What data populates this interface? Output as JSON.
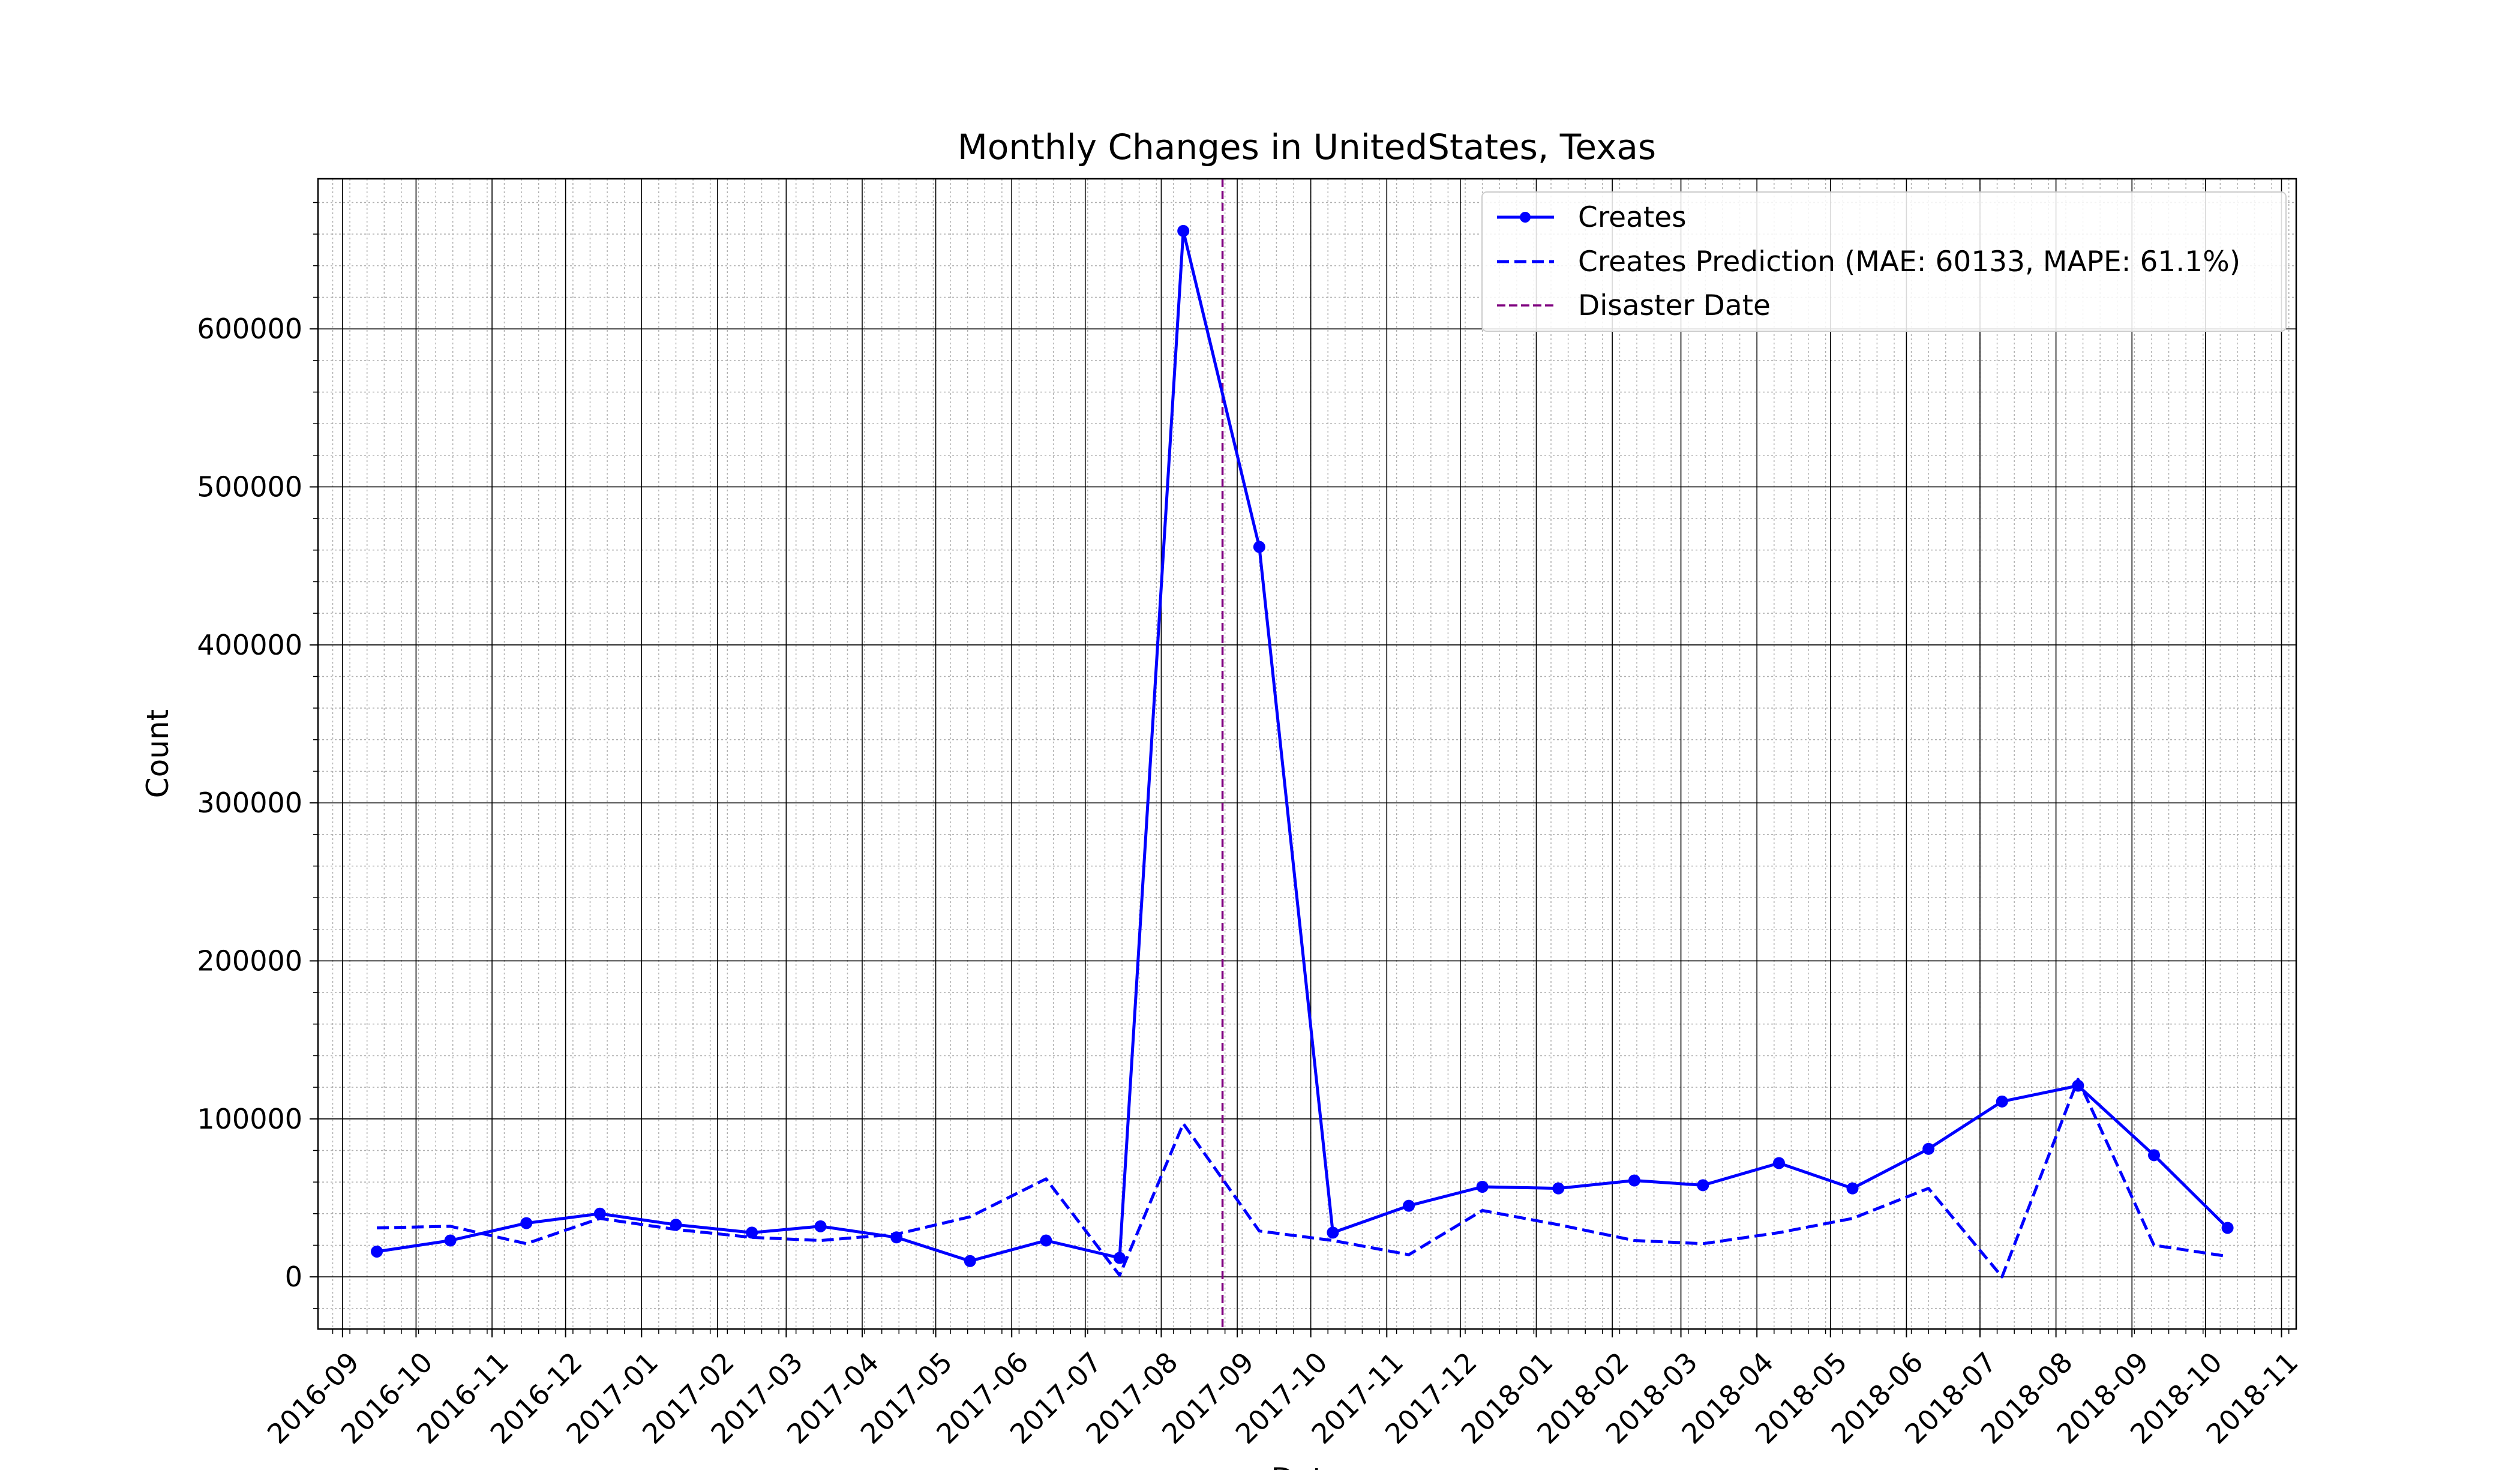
{
  "chart_data": {
    "type": "line",
    "title": "Monthly Changes in UnitedStates, Texas",
    "xlabel": "Date",
    "ylabel": "Count",
    "x_tick_labels": [
      "2016-09",
      "2016-10",
      "2016-11",
      "2016-12",
      "2017-01",
      "2017-02",
      "2017-03",
      "2017-04",
      "2017-05",
      "2017-06",
      "2017-07",
      "2017-08",
      "2017-09",
      "2017-10",
      "2017-11",
      "2017-12",
      "2018-01",
      "2018-02",
      "2018-03",
      "2018-04",
      "2018-05",
      "2018-06",
      "2018-07",
      "2018-08",
      "2018-09",
      "2018-10",
      "2018-11"
    ],
    "y_ticks": [
      0,
      100000,
      200000,
      300000,
      400000,
      500000,
      600000
    ],
    "ylim": [
      -33000,
      695000
    ],
    "xlim": [
      "2016-08-22",
      "2018-11-07"
    ],
    "grid": true,
    "legend_position": "top-right",
    "colors": {
      "actual": "#0000ff",
      "prediction": "#0000ff",
      "disaster": "#800080"
    },
    "disaster_date": "2017-08-26",
    "x": [
      "2016-09-15",
      "2016-10-15",
      "2016-11-15",
      "2016-12-15",
      "2017-01-15",
      "2017-02-15",
      "2017-03-15",
      "2017-04-15",
      "2017-05-15",
      "2017-06-15",
      "2017-07-15",
      "2017-08-10",
      "2017-09-10",
      "2017-10-10",
      "2017-11-10",
      "2017-12-10",
      "2018-01-10",
      "2018-02-10",
      "2018-03-10",
      "2018-04-10",
      "2018-05-10",
      "2018-06-10",
      "2018-07-10",
      "2018-08-10",
      "2018-09-10",
      "2018-10-10"
    ],
    "series": [
      {
        "name": "Creates",
        "style": "solid-marker",
        "values": [
          16000,
          23000,
          34000,
          40000,
          33000,
          28000,
          32000,
          25000,
          10000,
          23000,
          12000,
          662000,
          462000,
          28000,
          45000,
          57000,
          56000,
          61000,
          58000,
          72000,
          56000,
          81000,
          111000,
          121000,
          77000,
          31000
        ]
      },
      {
        "name": "Creates Prediction (MAE: 60133, MAPE: 61.1%)",
        "style": "dashed",
        "values": [
          31000,
          32000,
          21000,
          37000,
          30000,
          25000,
          23000,
          27000,
          38000,
          62000,
          1000,
          97000,
          29000,
          23000,
          14000,
          42000,
          33000,
          23000,
          21000,
          28000,
          37000,
          56000,
          0,
          125000,
          20000,
          13000
        ]
      }
    ],
    "disaster_label": "Disaster Date"
  }
}
